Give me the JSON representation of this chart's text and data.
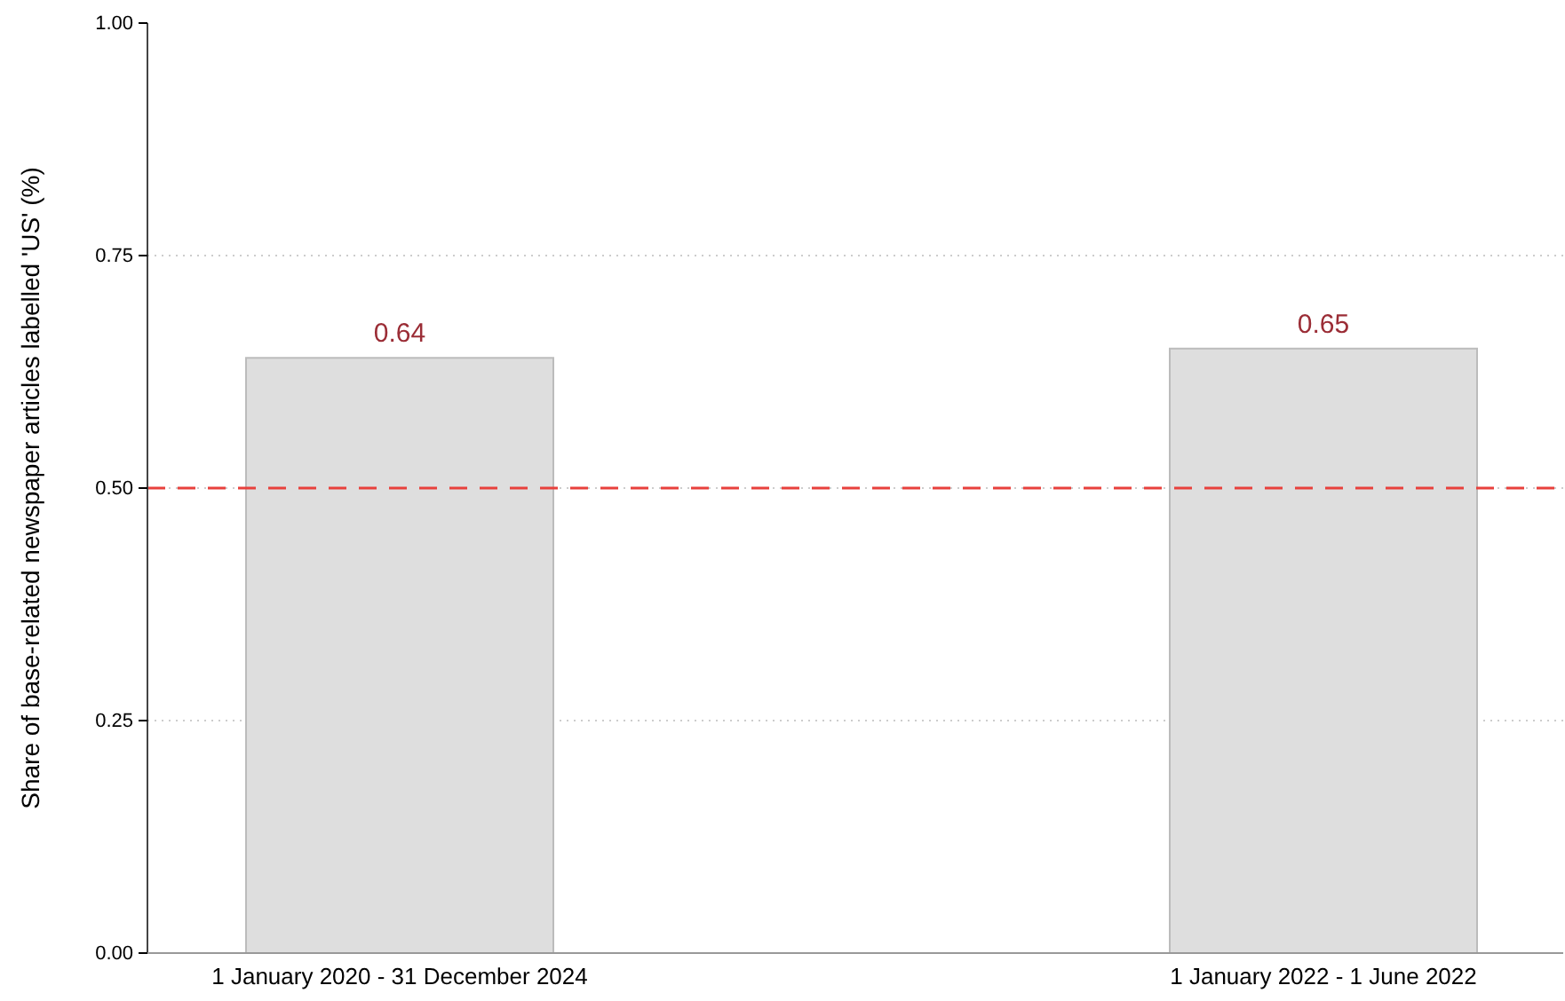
{
  "chart_data": {
    "type": "bar",
    "ylabel": "Share of base-related newspaper articles labelled 'US' (%)",
    "categories": [
      "1 January 2020 - 31 December 2024",
      "1 January 2022 - 1 June 2022"
    ],
    "values": [
      0.64,
      0.65
    ],
    "color": "#dedede",
    "data_labels": true,
    "ylim": [
      0,
      1
    ],
    "yticks": [
      {
        "value": 0,
        "label": "0.00"
      },
      {
        "value": 0.25,
        "label": "0.25"
      },
      {
        "value": 0.5,
        "label": "0.50"
      },
      {
        "value": 0.75,
        "label": "0.75"
      },
      {
        "value": 1,
        "label": "1.00"
      }
    ],
    "grid": "y",
    "ref_lines": [
      {
        "axis": "y",
        "value": 0.5,
        "color": "#e8413c",
        "line_style": "dashed"
      }
    ]
  }
}
